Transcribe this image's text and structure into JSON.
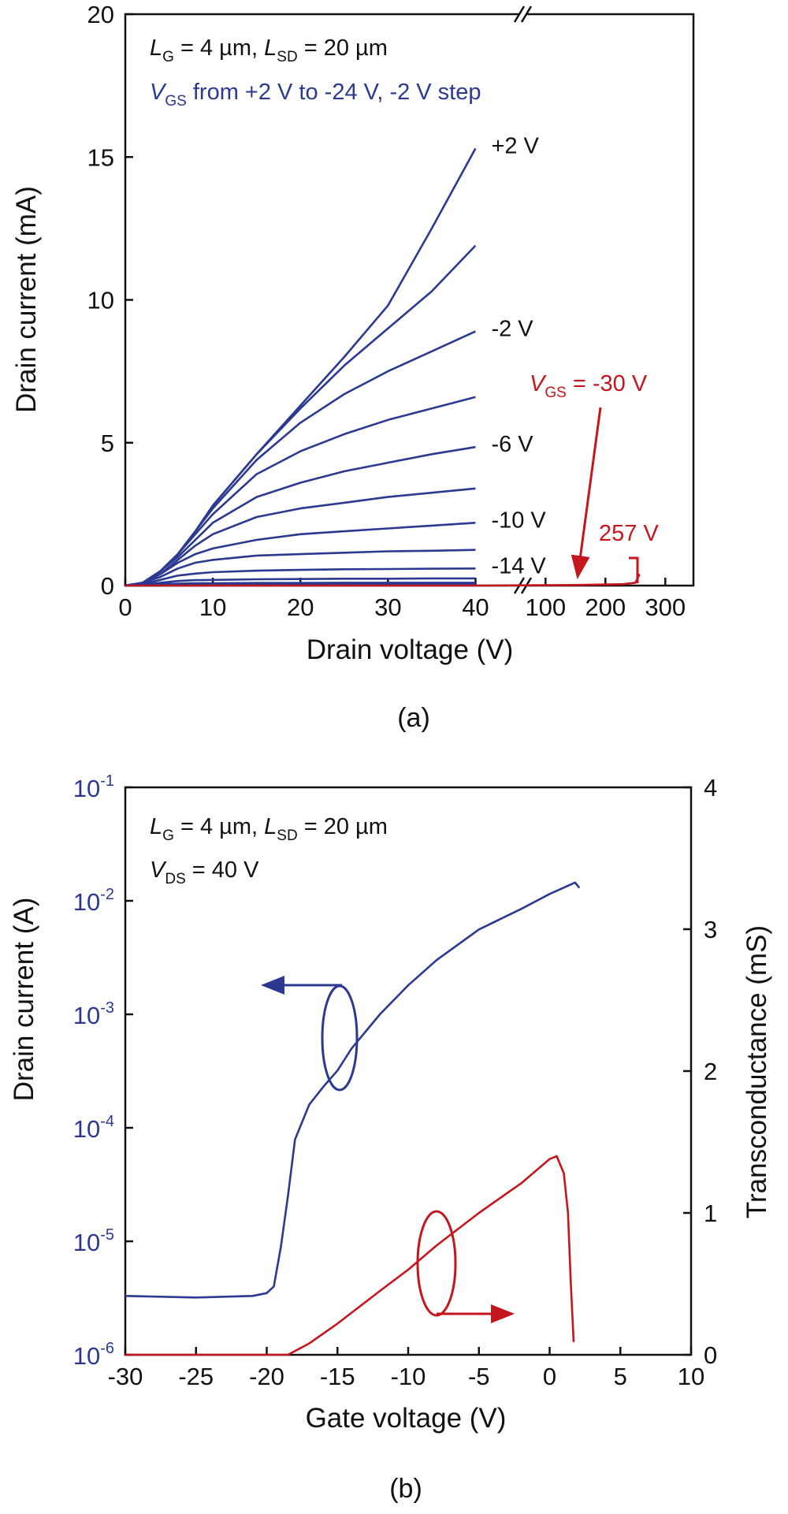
{
  "chart_data": [
    {
      "type": "line",
      "caption": "(a)",
      "xlabel": "Drain voltage (V)",
      "ylabel": "Drain current (mA)",
      "xlim": [
        0,
        347
      ],
      "xbreak": [
        45,
        68
      ],
      "xticks": [
        0,
        10,
        20,
        30,
        40,
        100,
        200,
        300
      ],
      "ylim": [
        0,
        20
      ],
      "yticks": [
        0,
        5,
        10,
        15,
        20
      ],
      "x": [
        0,
        2,
        4,
        6,
        8,
        10,
        15,
        20,
        25,
        30,
        35,
        40
      ],
      "series": [
        {
          "label": "+2 V",
          "color": "#2b3990",
          "values": [
            0,
            0.1,
            0.5,
            1.1,
            1.9,
            2.8,
            4.6,
            6.3,
            8.0,
            9.8,
            12.5,
            15.3
          ]
        },
        {
          "color": "#2b3990",
          "values": [
            0,
            0.1,
            0.5,
            1.1,
            1.9,
            2.8,
            4.6,
            6.2,
            7.7,
            9.0,
            10.3,
            11.9
          ]
        },
        {
          "label": "-2 V",
          "color": "#2b3990",
          "values": [
            0,
            0.1,
            0.5,
            1.1,
            1.9,
            2.7,
            4.4,
            5.7,
            6.7,
            7.5,
            8.2,
            8.9
          ]
        },
        {
          "color": "#2b3990",
          "values": [
            0,
            0.1,
            0.5,
            1.1,
            1.8,
            2.5,
            3.9,
            4.7,
            5.3,
            5.8,
            6.2,
            6.6
          ]
        },
        {
          "label": "-6 V",
          "color": "#2b3990",
          "values": [
            0,
            0.1,
            0.5,
            1.0,
            1.6,
            2.2,
            3.1,
            3.6,
            4.0,
            4.3,
            4.6,
            4.85
          ]
        },
        {
          "color": "#2b3990",
          "values": [
            0,
            0.1,
            0.4,
            0.9,
            1.4,
            1.8,
            2.4,
            2.7,
            2.9,
            3.1,
            3.25,
            3.4
          ]
        },
        {
          "label": "-10 V",
          "color": "#2b3990",
          "values": [
            0,
            0.1,
            0.4,
            0.8,
            1.1,
            1.3,
            1.6,
            1.8,
            1.9,
            2.0,
            2.1,
            2.2
          ]
        },
        {
          "color": "#2b3990",
          "values": [
            0,
            0.1,
            0.3,
            0.6,
            0.8,
            0.9,
            1.05,
            1.1,
            1.15,
            1.2,
            1.22,
            1.25
          ]
        },
        {
          "label": "-14 V",
          "color": "#2b3990",
          "values": [
            0,
            0.05,
            0.2,
            0.35,
            0.42,
            0.47,
            0.52,
            0.55,
            0.57,
            0.58,
            0.59,
            0.6
          ]
        },
        {
          "color": "#2b3990",
          "values": [
            0,
            0.03,
            0.1,
            0.16,
            0.19,
            0.2,
            0.22,
            0.23,
            0.24,
            0.24,
            0.25,
            0.25
          ]
        },
        {
          "color": "#2b3990",
          "values": [
            0,
            0.02,
            0.05,
            0.07,
            0.08,
            0.08,
            0.09,
            0.09,
            0.1,
            0.1,
            0.1,
            0.1
          ]
        },
        {
          "color": "#2b3990",
          "values": [
            0,
            0.01,
            0.02,
            0.03,
            0.03,
            0.04,
            0.04,
            0.04,
            0.05,
            0.05,
            0.05,
            0.05
          ]
        },
        {
          "color": "#2b3990",
          "values": [
            0,
            0.005,
            0.01,
            0.01,
            0.015,
            0.015,
            0.02,
            0.02,
            0.02,
            0.02,
            0.02,
            0.02
          ]
        },
        {
          "color": "#2b3990",
          "values": [
            0,
            0.002,
            0.004,
            0.005,
            0.006,
            0.007,
            0.008,
            0.009,
            0.01,
            0.01,
            0.01,
            0.01
          ]
        },
        {
          "color": "#c4161c",
          "x": [
            0,
            40,
            150,
            230,
            250,
            257
          ],
          "values": [
            0,
            0,
            0.02,
            0.05,
            0.1,
            0.4
          ]
        }
      ],
      "annotations": [
        {
          "color": "#111111",
          "parts": [
            {
              "text": "L",
              "italic": true
            },
            {
              "text": "G",
              "sub": true
            },
            {
              "text": " = 4 µm, "
            },
            {
              "text": "L",
              "italic": true
            },
            {
              "text": "SD",
              "sub": true
            },
            {
              "text": " = 20 µm"
            }
          ]
        },
        {
          "color": "#2b3990",
          "parts": [
            {
              "text": "V",
              "italic": true
            },
            {
              "text": "GS",
              "sub": true
            },
            {
              "text": " from +2 V to -24 V, -2 V step"
            }
          ]
        },
        {
          "color": "#c4161c",
          "parts": [
            {
              "text": "V",
              "italic": true
            },
            {
              "text": "GS",
              "sub": true
            },
            {
              "text": " = -30 V"
            }
          ]
        },
        {
          "color": "#c4161c",
          "parts": [
            {
              "text": "257 V"
            }
          ]
        }
      ]
    },
    {
      "type": "line",
      "caption": "(b)",
      "xlabel": "Gate voltage (V)",
      "ylabel": "Drain current (A)",
      "y2label": "Transconductance (mS)",
      "ylabel_color": "#2b3990",
      "y2label_color": "#c4161c",
      "xlim": [
        -30,
        10
      ],
      "xticks": [
        -30,
        -25,
        -20,
        -15,
        -10,
        -5,
        0,
        5,
        10
      ],
      "ylim": [
        1e-06,
        0.1
      ],
      "ylog": true,
      "yticks": [
        {
          "value": 1e-06,
          "label": "10",
          "label_sup": "-6"
        },
        {
          "value": 1e-05,
          "label": "10",
          "label_sup": "-5"
        },
        {
          "value": 0.0001,
          "label": "10",
          "label_sup": "-4"
        },
        {
          "value": 0.001,
          "label": "10",
          "label_sup": "-3"
        },
        {
          "value": 0.01,
          "label": "10",
          "label_sup": "-2"
        },
        {
          "value": 0.1,
          "label": "10",
          "label_sup": "-1"
        }
      ],
      "y2lim": [
        0,
        4
      ],
      "y2ticks": [
        0,
        1,
        2,
        3,
        4
      ],
      "series": [
        {
          "color": "#2b3990",
          "x": [
            -30,
            -25,
            -21,
            -20,
            -19.5,
            -19,
            -18.5,
            -18,
            -17,
            -16,
            -15,
            -14,
            -12,
            -10,
            -8,
            -5,
            -2,
            0,
            1.8,
            2.1
          ],
          "values": [
            3.3e-06,
            3.2e-06,
            3.3e-06,
            3.5e-06,
            4e-06,
            9e-06,
            2.5e-05,
            7.9e-05,
            0.00016,
            0.00023,
            0.00032,
            0.0005,
            0.001,
            0.0018,
            0.003,
            0.0056,
            0.0085,
            0.0115,
            0.0145,
            0.013
          ]
        },
        {
          "color": "#c4161c",
          "axis": "y2",
          "x": [
            -30,
            -18.5,
            -17,
            -15,
            -12,
            -10,
            -8,
            -5,
            -2,
            0,
            0.5,
            1,
            1.3,
            1.5,
            1.7
          ],
          "values": [
            0,
            0,
            0.08,
            0.22,
            0.45,
            0.6,
            0.77,
            1.0,
            1.21,
            1.38,
            1.4,
            1.28,
            1.0,
            0.5,
            0.09
          ]
        }
      ],
      "annotations": [
        {
          "color": "#111111",
          "parts": [
            {
              "text": "L",
              "italic": true
            },
            {
              "text": "G",
              "sub": true
            },
            {
              "text": " = 4 µm, "
            },
            {
              "text": "L",
              "italic": true
            },
            {
              "text": "SD",
              "sub": true
            },
            {
              "text": " = 20 µm"
            }
          ]
        },
        {
          "color": "#111111",
          "parts": [
            {
              "text": "V",
              "italic": true
            },
            {
              "text": "DS",
              "sub": true
            },
            {
              "text": " = 40 V"
            }
          ]
        }
      ]
    }
  ]
}
